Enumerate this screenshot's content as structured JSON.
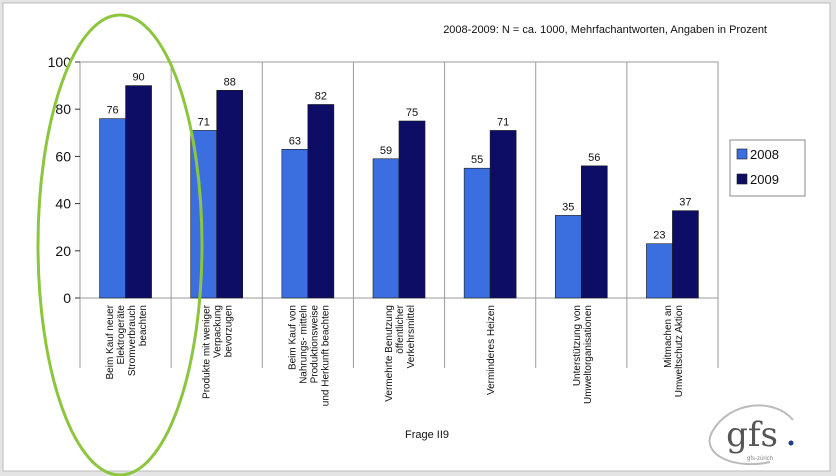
{
  "chart_data": {
    "type": "bar",
    "subtitle": "2008-2009: N = ca. 1000, Mehrfachantworten, Angaben in Prozent",
    "xlabel": "Frage II9",
    "ylim": [
      0,
      100
    ],
    "yticks": [
      0,
      20,
      40,
      60,
      80,
      100
    ],
    "categories": [
      [
        "Beim Kauf neuer",
        "Elektrogeräte",
        "Stromverbrauch",
        "beachten"
      ],
      [
        "Produkte mit weniger",
        "Verpackung",
        "bevorzugen"
      ],
      [
        "Beim Kauf von",
        "Nahrungs- mitteln",
        "Produktionsweise",
        "und Herkunft beachten"
      ],
      [
        "Vermehrte Benutzung",
        "öffentlicher",
        "Verkehrsmittel"
      ],
      [
        "Verminderes Heizen"
      ],
      [
        "Unterstützung von",
        "Umweltorganisationen"
      ],
      [
        "Mitmachen an",
        "Umweltschutz Aktion"
      ]
    ],
    "series": [
      {
        "name": "2008",
        "color": "#3b6fe0",
        "values": [
          76,
          71,
          63,
          59,
          55,
          35,
          23
        ]
      },
      {
        "name": "2009",
        "color": "#0d0d66",
        "values": [
          90,
          88,
          82,
          75,
          71,
          56,
          37
        ]
      }
    ],
    "grid": "vertical separators",
    "legend_position": "right",
    "highlight": "green ellipse around first category"
  },
  "logo": {
    "text": "gfs",
    "sub": "gfs-zürich"
  }
}
